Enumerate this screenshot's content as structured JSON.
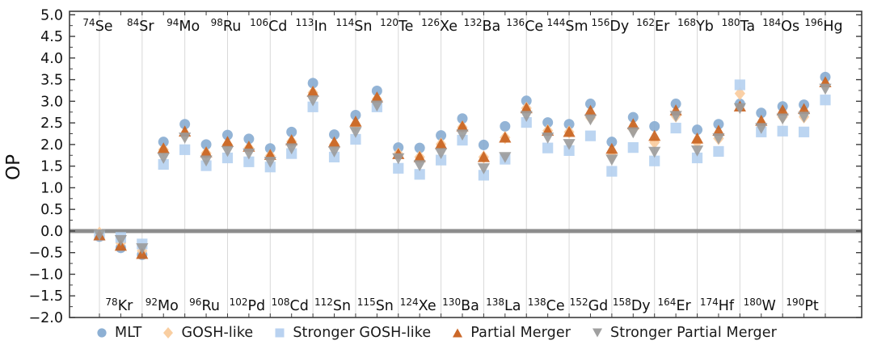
{
  "chart_data": {
    "type": "scatter",
    "title": "",
    "xlabel": "",
    "ylabel": "OP",
    "ylim": [
      -2.0,
      5.0
    ],
    "ytick_step": 0.5,
    "ytick_labels_top_to_bottom": [
      "5.0",
      "4.5",
      "4.0",
      "3.5",
      "3.0",
      "2.5",
      "2.0",
      "1.5",
      "1.0",
      "0.5",
      "0.0",
      "−0.5",
      "−1.0",
      "−1.5",
      "−2.0"
    ],
    "grid": "vertical-lines-at-top-labeled-isotopes",
    "legend_position": "bottom-center",
    "zero_line": {
      "y": 0.0,
      "color": "#8c8c8c"
    },
    "isotopes": [
      {
        "m": "74",
        "el": "Se",
        "row": "top"
      },
      {
        "m": "78",
        "el": "Kr",
        "row": "bottom"
      },
      {
        "m": "84",
        "el": "Sr",
        "row": "top"
      },
      {
        "m": "92",
        "el": "Mo",
        "row": "bottom"
      },
      {
        "m": "94",
        "el": "Mo",
        "row": "top"
      },
      {
        "m": "96",
        "el": "Ru",
        "row": "bottom"
      },
      {
        "m": "98",
        "el": "Ru",
        "row": "top"
      },
      {
        "m": "102",
        "el": "Pd",
        "row": "bottom"
      },
      {
        "m": "106",
        "el": "Cd",
        "row": "top"
      },
      {
        "m": "108",
        "el": "Cd",
        "row": "bottom"
      },
      {
        "m": "113",
        "el": "In",
        "row": "top"
      },
      {
        "m": "112",
        "el": "Sn",
        "row": "bottom"
      },
      {
        "m": "114",
        "el": "Sn",
        "row": "top"
      },
      {
        "m": "115",
        "el": "Sn",
        "row": "bottom"
      },
      {
        "m": "120",
        "el": "Te",
        "row": "top"
      },
      {
        "m": "124",
        "el": "Xe",
        "row": "bottom"
      },
      {
        "m": "126",
        "el": "Xe",
        "row": "top"
      },
      {
        "m": "130",
        "el": "Ba",
        "row": "bottom"
      },
      {
        "m": "132",
        "el": "Ba",
        "row": "top"
      },
      {
        "m": "138",
        "el": "La",
        "row": "bottom"
      },
      {
        "m": "136",
        "el": "Ce",
        "row": "top"
      },
      {
        "m": "138",
        "el": "Ce",
        "row": "bottom"
      },
      {
        "m": "144",
        "el": "Sm",
        "row": "top"
      },
      {
        "m": "152",
        "el": "Gd",
        "row": "bottom"
      },
      {
        "m": "156",
        "el": "Dy",
        "row": "top"
      },
      {
        "m": "158",
        "el": "Dy",
        "row": "bottom"
      },
      {
        "m": "162",
        "el": "Er",
        "row": "top"
      },
      {
        "m": "164",
        "el": "Er",
        "row": "bottom"
      },
      {
        "m": "168",
        "el": "Yb",
        "row": "top"
      },
      {
        "m": "174",
        "el": "Hf",
        "row": "bottom"
      },
      {
        "m": "180",
        "el": "Ta",
        "row": "top"
      },
      {
        "m": "180",
        "el": "W",
        "row": "bottom"
      },
      {
        "m": "184",
        "el": "Os",
        "row": "top"
      },
      {
        "m": "190",
        "el": "Pt",
        "row": "bottom"
      },
      {
        "m": "196",
        "el": "Hg",
        "row": "top"
      }
    ],
    "series": [
      {
        "name": "MLT",
        "marker": "circle",
        "color": "#87ACD2",
        "values": [
          -0.13,
          -0.39,
          -0.55,
          2.06,
          2.47,
          2.0,
          2.22,
          2.13,
          1.91,
          2.29,
          3.42,
          2.23,
          2.68,
          3.24,
          1.93,
          1.92,
          2.21,
          2.6,
          1.99,
          2.42,
          3.01,
          2.51,
          2.47,
          2.94,
          2.06,
          2.63,
          2.42,
          2.94,
          2.34,
          2.47,
          2.94,
          2.73,
          2.88,
          2.92,
          3.56
        ]
      },
      {
        "name": "GOSH-like",
        "marker": "diamond",
        "color": "#F9CB9C",
        "values": [
          -0.05,
          -0.28,
          -0.46,
          1.88,
          2.21,
          1.8,
          2.0,
          1.92,
          1.74,
          2.07,
          3.2,
          2.0,
          2.44,
          3.05,
          1.78,
          1.71,
          2.01,
          2.4,
          1.71,
          2.16,
          2.84,
          2.32,
          2.29,
          2.62,
          1.74,
          2.35,
          2.05,
          2.66,
          2.05,
          2.14,
          3.18,
          2.47,
          2.64,
          2.64,
          3.38
        ]
      },
      {
        "name": "Stronger GOSH-like",
        "marker": "square",
        "color": "#B5D0EF",
        "values": [
          -0.1,
          -0.15,
          -0.3,
          1.54,
          1.88,
          1.51,
          1.69,
          1.6,
          1.48,
          1.79,
          2.87,
          1.71,
          2.12,
          2.87,
          1.45,
          1.31,
          1.64,
          2.1,
          1.29,
          1.66,
          2.51,
          1.92,
          1.86,
          2.2,
          1.38,
          1.93,
          1.62,
          2.38,
          1.69,
          1.84,
          3.38,
          2.29,
          2.31,
          2.29,
          3.03
        ]
      },
      {
        "name": "Partial Merger",
        "marker": "triangle-up",
        "color": "#C8601D",
        "values": [
          -0.1,
          -0.34,
          -0.53,
          1.91,
          2.3,
          1.82,
          2.06,
          1.95,
          1.76,
          2.1,
          3.22,
          2.05,
          2.53,
          3.09,
          1.78,
          1.71,
          2.01,
          2.42,
          1.71,
          2.16,
          2.84,
          2.32,
          2.29,
          2.78,
          1.9,
          2.47,
          2.2,
          2.79,
          2.14,
          2.32,
          2.88,
          2.55,
          2.79,
          2.82,
          3.44
        ]
      },
      {
        "name": "Stronger Partial Merger",
        "marker": "triangle-down",
        "color": "#9B9B9B",
        "values": [
          -0.08,
          -0.21,
          -0.4,
          1.69,
          2.16,
          1.63,
          1.85,
          1.79,
          1.6,
          1.91,
          3.02,
          1.84,
          2.29,
          2.9,
          1.68,
          1.52,
          1.8,
          2.23,
          1.45,
          1.71,
          2.66,
          2.16,
          2.01,
          2.58,
          1.65,
          2.28,
          1.83,
          2.66,
          1.86,
          2.14,
          2.84,
          2.38,
          2.6,
          2.64,
          3.29
        ]
      }
    ]
  },
  "style": {
    "grid_color": "#d8d8d8",
    "spine_color": "#3c3c3c",
    "tick_color": "#3c3c3c",
    "text_color": "#111111",
    "marker_opacity": 0.9
  }
}
